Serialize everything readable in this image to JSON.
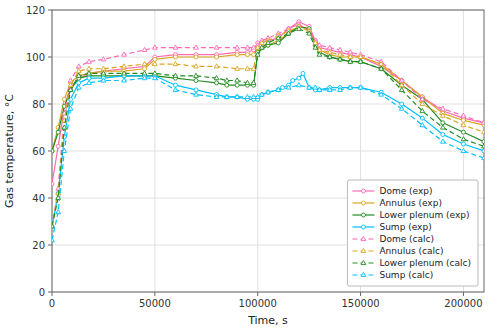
{
  "chart_data": {
    "type": "line",
    "xlabel": "Time, s",
    "ylabel": "Gas temperature, °C",
    "xlim": [
      0,
      210000
    ],
    "ylim": [
      0,
      120
    ],
    "xticks": [
      0,
      50000,
      100000,
      150000,
      200000
    ],
    "yticks": [
      0,
      20,
      40,
      60,
      80,
      100,
      120
    ],
    "grid": true,
    "legend": "lower right",
    "series": [
      {
        "name": "Dome (exp)",
        "color": "#ff69b4",
        "line_style": "solid",
        "marker": "circle",
        "x": [
          0,
          3000,
          6000,
          9000,
          13000,
          18000,
          25000,
          35000,
          45000,
          50000,
          60000,
          70000,
          80000,
          90000,
          95000,
          98000,
          100000,
          105000,
          110000,
          115000,
          120000,
          125000,
          128000,
          130000,
          135000,
          140000,
          145000,
          150000,
          160000,
          170000,
          180000,
          190000,
          200000,
          210000
        ],
        "values": [
          46,
          62,
          78,
          87,
          91,
          93,
          94,
          95,
          96,
          100,
          101,
          101,
          101,
          102,
          102,
          103,
          106,
          107,
          108,
          112,
          115,
          113,
          107,
          104,
          103,
          102,
          101,
          100,
          96,
          90,
          83,
          77,
          74,
          72
        ]
      },
      {
        "name": "Annulus (exp)",
        "color": "#daa520",
        "line_style": "solid",
        "marker": "circle",
        "x": [
          0,
          3000,
          6000,
          9000,
          13000,
          18000,
          25000,
          35000,
          45000,
          50000,
          60000,
          70000,
          80000,
          90000,
          95000,
          98000,
          100000,
          105000,
          110000,
          115000,
          120000,
          125000,
          128000,
          130000,
          135000,
          140000,
          145000,
          150000,
          160000,
          170000,
          180000,
          190000,
          200000,
          210000
        ],
        "values": [
          60,
          70,
          82,
          89,
          92,
          93,
          94,
          94,
          95,
          99,
          100,
          100,
          100,
          101,
          101,
          101,
          104,
          105,
          107,
          110,
          113,
          112,
          106,
          103,
          101,
          100,
          100,
          100,
          97,
          90,
          83,
          76,
          73,
          71
        ]
      },
      {
        "name": "Lower plenum (exp)",
        "color": "#228b22",
        "line_style": "solid",
        "marker": "circle",
        "x": [
          0,
          3000,
          6000,
          9000,
          13000,
          18000,
          25000,
          35000,
          45000,
          50000,
          60000,
          70000,
          80000,
          85000,
          90000,
          95000,
          98000,
          100000,
          105000,
          110000,
          115000,
          120000,
          125000,
          128000,
          130000,
          135000,
          140000,
          145000,
          150000,
          160000,
          170000,
          180000,
          190000,
          200000,
          210000
        ],
        "values": [
          60,
          68,
          79,
          86,
          91,
          92,
          92,
          92,
          92,
          92,
          91,
          90,
          89,
          88,
          88,
          88,
          88,
          102,
          105,
          106,
          110,
          113,
          112,
          105,
          102,
          100,
          99,
          98,
          98,
          95,
          88,
          82,
          72,
          68,
          64
        ]
      },
      {
        "name": "Sump (exp)",
        "color": "#00bfff",
        "line_style": "solid",
        "marker": "circle",
        "x": [
          0,
          3000,
          6000,
          9000,
          13000,
          18000,
          25000,
          35000,
          45000,
          50000,
          60000,
          70000,
          80000,
          85000,
          90000,
          95000,
          98000,
          100000,
          102000,
          105000,
          110000,
          112000,
          115000,
          117000,
          120000,
          122000,
          125000,
          128000,
          130000,
          135000,
          140000,
          145000,
          150000,
          160000,
          170000,
          180000,
          190000,
          200000,
          210000
        ],
        "values": [
          28,
          42,
          66,
          82,
          89,
          91,
          91,
          92,
          92,
          92,
          88,
          86,
          84,
          83,
          83,
          82,
          82,
          82,
          84,
          85,
          86,
          87,
          88,
          90,
          91,
          93,
          87,
          86,
          86,
          87,
          87,
          87,
          87,
          85,
          80,
          74,
          67,
          63,
          60
        ]
      },
      {
        "name": "Dome (calc)",
        "color": "#ff69b4",
        "line_style": "dashed",
        "marker": "triangle",
        "x": [
          0,
          3000,
          6000,
          9000,
          13000,
          18000,
          25000,
          35000,
          45000,
          50000,
          60000,
          70000,
          80000,
          90000,
          95000,
          98000,
          100000,
          102000,
          105000,
          110000,
          115000,
          120000,
          125000,
          128000,
          130000,
          135000,
          140000,
          145000,
          150000,
          160000,
          170000,
          180000,
          190000,
          200000,
          210000
        ],
        "values": [
          28,
          44,
          76,
          90,
          96,
          98,
          99,
          101,
          103,
          104,
          104,
          104,
          104,
          104,
          104,
          104,
          105,
          107,
          108,
          110,
          112,
          114,
          111,
          107,
          105,
          104,
          103,
          102,
          101,
          98,
          90,
          82,
          78,
          75,
          72
        ]
      },
      {
        "name": "Annulus (calc)",
        "color": "#daa520",
        "line_style": "dashed",
        "marker": "triangle",
        "x": [
          0,
          3000,
          6000,
          9000,
          13000,
          18000,
          25000,
          35000,
          45000,
          50000,
          60000,
          70000,
          80000,
          90000,
          95000,
          98000,
          100000,
          102000,
          105000,
          110000,
          115000,
          120000,
          125000,
          128000,
          130000,
          135000,
          140000,
          145000,
          150000,
          160000,
          170000,
          180000,
          190000,
          200000,
          210000
        ],
        "values": [
          28,
          42,
          73,
          88,
          94,
          95,
          95,
          96,
          97,
          97,
          97,
          96,
          96,
          95,
          95,
          95,
          104,
          106,
          107,
          109,
          111,
          113,
          111,
          106,
          103,
          102,
          101,
          100,
          100,
          97,
          88,
          80,
          75,
          71,
          68
        ]
      },
      {
        "name": "Lower plenum (calc)",
        "color": "#228b22",
        "line_style": "dashed",
        "marker": "triangle",
        "x": [
          0,
          3000,
          6000,
          9000,
          13000,
          18000,
          25000,
          35000,
          45000,
          50000,
          60000,
          70000,
          80000,
          85000,
          90000,
          95000,
          98000,
          100000,
          102000,
          105000,
          110000,
          115000,
          120000,
          125000,
          128000,
          130000,
          135000,
          140000,
          145000,
          150000,
          160000,
          170000,
          180000,
          190000,
          200000,
          210000
        ],
        "values": [
          28,
          40,
          70,
          86,
          92,
          93,
          93,
          93,
          93,
          93,
          92,
          92,
          91,
          90,
          90,
          89,
          89,
          101,
          104,
          106,
          108,
          110,
          112,
          110,
          104,
          101,
          100,
          99,
          98,
          98,
          95,
          86,
          77,
          70,
          65,
          62
        ]
      },
      {
        "name": "Sump (calc)",
        "color": "#00bfff",
        "line_style": "dashed",
        "marker": "triangle",
        "x": [
          0,
          3000,
          6000,
          9000,
          13000,
          18000,
          25000,
          35000,
          45000,
          50000,
          60000,
          70000,
          80000,
          85000,
          90000,
          95000,
          98000,
          100000,
          102000,
          105000,
          110000,
          115000,
          120000,
          125000,
          128000,
          130000,
          135000,
          140000,
          145000,
          150000,
          160000,
          170000,
          180000,
          190000,
          200000,
          210000
        ],
        "values": [
          22,
          34,
          60,
          78,
          87,
          89,
          90,
          90,
          91,
          91,
          86,
          84,
          83,
          83,
          83,
          83,
          83,
          83,
          84,
          85,
          86,
          87,
          88,
          87,
          87,
          86,
          86,
          86,
          87,
          87,
          84,
          78,
          71,
          64,
          60,
          57
        ]
      }
    ]
  }
}
